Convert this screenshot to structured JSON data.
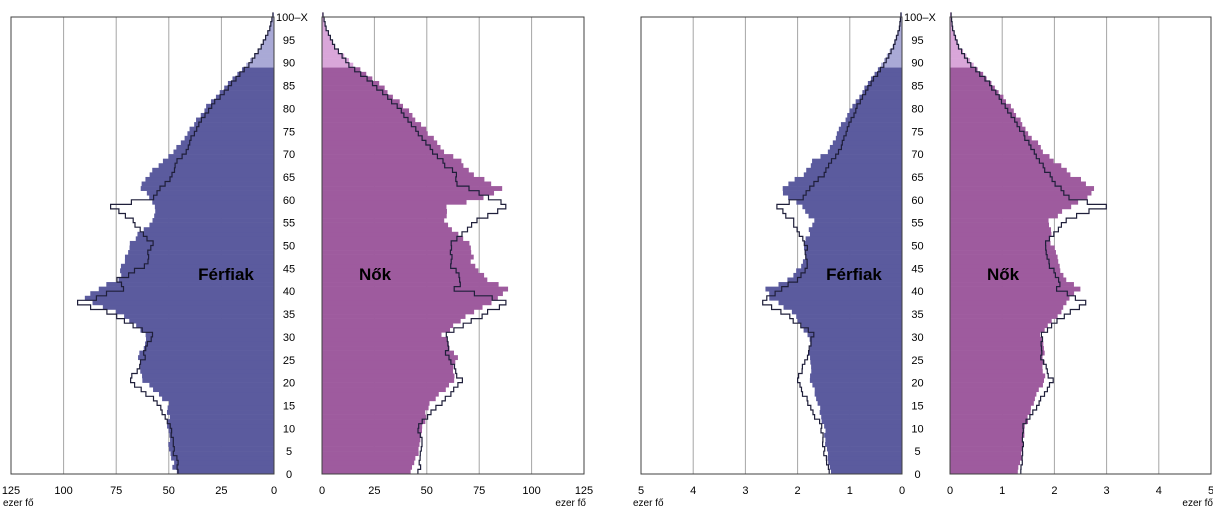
{
  "colors": {
    "male": "#5b5b9e",
    "female": "#9e5b9e",
    "male_light": "#a9a9d6",
    "female_light": "#d9a6d9",
    "outline": "#1f1f3a",
    "grid": "#a6a6a6",
    "frame": "#404040"
  },
  "chart_data": [
    {
      "type": "bar",
      "subtype": "population-pyramid",
      "unit": "ezer fő",
      "age_axis_labels": [
        "0",
        "5",
        "10",
        "15",
        "20",
        "25",
        "30",
        "35",
        "40",
        "45",
        "50",
        "55",
        "60",
        "65",
        "70",
        "75",
        "80",
        "85",
        "90",
        "95",
        "100–X"
      ],
      "age_range": [
        0,
        100
      ],
      "male_label": "Férfiak",
      "female_label": "Nők",
      "xlim": [
        0,
        125
      ],
      "x_ticks": [
        0,
        25,
        50,
        75,
        100,
        125
      ],
      "grid": true,
      "series": [
        {
          "name": "Férfiak",
          "side": "left",
          "style": "filled",
          "light_from_age": 89,
          "points": [
            [
              0,
              47
            ],
            [
              5,
              50
            ],
            [
              10,
              50
            ],
            [
              15,
              50
            ],
            [
              20,
              62
            ],
            [
              25,
              65
            ],
            [
              30,
              60
            ],
            [
              35,
              75
            ],
            [
              38,
              90
            ],
            [
              40,
              83
            ],
            [
              42,
              74
            ],
            [
              45,
              72
            ],
            [
              50,
              69
            ],
            [
              55,
              57
            ],
            [
              58,
              57
            ],
            [
              60,
              60
            ],
            [
              63,
              64
            ],
            [
              65,
              60
            ],
            [
              68,
              53
            ],
            [
              70,
              48
            ],
            [
              75,
              40
            ],
            [
              80,
              32
            ],
            [
              85,
              22
            ],
            [
              89,
              13
            ],
            [
              93,
              6
            ],
            [
              97,
              2
            ],
            [
              100,
              0.5
            ]
          ]
        },
        {
          "name": "",
          "side": "left",
          "style": "outline",
          "points": [
            [
              0,
              45
            ],
            [
              5,
              48
            ],
            [
              10,
              49
            ],
            [
              15,
              55
            ],
            [
              20,
              68
            ],
            [
              25,
              62
            ],
            [
              30,
              58
            ],
            [
              35,
              80
            ],
            [
              37,
              92
            ],
            [
              40,
              72
            ],
            [
              42,
              74
            ],
            [
              45,
              61
            ],
            [
              50,
              58
            ],
            [
              55,
              67
            ],
            [
              58,
              78
            ],
            [
              60,
              57
            ],
            [
              63,
              52
            ],
            [
              65,
              48
            ],
            [
              68,
              46
            ],
            [
              70,
              42
            ],
            [
              75,
              37
            ],
            [
              80,
              30
            ],
            [
              85,
              20
            ],
            [
              89,
              12
            ],
            [
              93,
              6
            ],
            [
              97,
              2
            ],
            [
              100,
              0.5
            ]
          ]
        },
        {
          "name": "Nők",
          "side": "right",
          "style": "filled",
          "light_from_age": 89,
          "points": [
            [
              0,
              43
            ],
            [
              5,
              46
            ],
            [
              10,
              48
            ],
            [
              15,
              51
            ],
            [
              20,
              63
            ],
            [
              25,
              64
            ],
            [
              30,
              58
            ],
            [
              35,
              72
            ],
            [
              38,
              84
            ],
            [
              40,
              89
            ],
            [
              42,
              80
            ],
            [
              45,
              72
            ],
            [
              50,
              70
            ],
            [
              55,
              58
            ],
            [
              58,
              60
            ],
            [
              60,
              76
            ],
            [
              62,
              86
            ],
            [
              65,
              72
            ],
            [
              68,
              66
            ],
            [
              70,
              58
            ],
            [
              75,
              49
            ],
            [
              80,
              39
            ],
            [
              85,
              27
            ],
            [
              89,
              15
            ],
            [
              93,
              6
            ],
            [
              97,
              2
            ],
            [
              100,
              0.5
            ]
          ]
        },
        {
          "name": "",
          "side": "right",
          "style": "outline",
          "points": [
            [
              0,
              46
            ],
            [
              5,
              48
            ],
            [
              10,
              46
            ],
            [
              15,
              57
            ],
            [
              20,
              66
            ],
            [
              25,
              60
            ],
            [
              30,
              59
            ],
            [
              35,
              80
            ],
            [
              37,
              89
            ],
            [
              40,
              64
            ],
            [
              42,
              66
            ],
            [
              45,
              62
            ],
            [
              50,
              61
            ],
            [
              55,
              74
            ],
            [
              58,
              89
            ],
            [
              60,
              80
            ],
            [
              63,
              64
            ],
            [
              65,
              64
            ],
            [
              68,
              57
            ],
            [
              70,
              53
            ],
            [
              75,
              45
            ],
            [
              80,
              36
            ],
            [
              85,
              24
            ],
            [
              89,
              13
            ],
            [
              93,
              6
            ],
            [
              97,
              2
            ],
            [
              100,
              0.5
            ]
          ]
        }
      ]
    },
    {
      "type": "bar",
      "subtype": "population-pyramid",
      "unit": "ezer fő",
      "age_axis_labels": [
        "0",
        "5",
        "10",
        "15",
        "20",
        "25",
        "30",
        "35",
        "40",
        "45",
        "50",
        "55",
        "60",
        "65",
        "70",
        "75",
        "80",
        "85",
        "90",
        "95",
        "100–X"
      ],
      "age_range": [
        0,
        100
      ],
      "male_label": "Férfiak",
      "female_label": "Nők",
      "xlim": [
        0,
        5
      ],
      "x_ticks": [
        0,
        1,
        2,
        3,
        4,
        5
      ],
      "grid": true,
      "series": [
        {
          "name": "Férfiak",
          "side": "left",
          "style": "filled",
          "light_from_age": 89,
          "points": [
            [
              0,
              1.35
            ],
            [
              5,
              1.45
            ],
            [
              10,
              1.5
            ],
            [
              15,
              1.6
            ],
            [
              20,
              1.75
            ],
            [
              25,
              1.75
            ],
            [
              30,
              1.8
            ],
            [
              35,
              2.1
            ],
            [
              38,
              2.5
            ],
            [
              40,
              2.6
            ],
            [
              42,
              2.2
            ],
            [
              45,
              1.9
            ],
            [
              50,
              1.85
            ],
            [
              55,
              1.7
            ],
            [
              58,
              1.9
            ],
            [
              60,
              2.2
            ],
            [
              62,
              2.3
            ],
            [
              65,
              1.9
            ],
            [
              68,
              1.7
            ],
            [
              70,
              1.4
            ],
            [
              75,
              1.2
            ],
            [
              80,
              0.95
            ],
            [
              85,
              0.65
            ],
            [
              89,
              0.4
            ],
            [
              93,
              0.18
            ],
            [
              97,
              0.06
            ],
            [
              100,
              0.02
            ]
          ]
        },
        {
          "name": "",
          "side": "left",
          "style": "outline",
          "points": [
            [
              0,
              1.4
            ],
            [
              5,
              1.5
            ],
            [
              10,
              1.55
            ],
            [
              15,
              1.8
            ],
            [
              20,
              2.0
            ],
            [
              25,
              1.8
            ],
            [
              30,
              1.7
            ],
            [
              35,
              2.3
            ],
            [
              37,
              2.7
            ],
            [
              40,
              2.3
            ],
            [
              42,
              2.0
            ],
            [
              45,
              1.8
            ],
            [
              50,
              1.85
            ],
            [
              55,
              2.1
            ],
            [
              58,
              2.4
            ],
            [
              60,
              1.9
            ],
            [
              63,
              1.7
            ],
            [
              65,
              1.5
            ],
            [
              68,
              1.35
            ],
            [
              70,
              1.2
            ],
            [
              75,
              1.05
            ],
            [
              80,
              0.85
            ],
            [
              85,
              0.6
            ],
            [
              89,
              0.35
            ],
            [
              93,
              0.16
            ],
            [
              97,
              0.05
            ],
            [
              100,
              0.02
            ]
          ]
        },
        {
          "name": "Nők",
          "side": "right",
          "style": "filled",
          "light_from_age": 89,
          "points": [
            [
              0,
              1.3
            ],
            [
              5,
              1.4
            ],
            [
              10,
              1.45
            ],
            [
              15,
              1.6
            ],
            [
              20,
              1.8
            ],
            [
              25,
              1.8
            ],
            [
              30,
              1.75
            ],
            [
              35,
              2.1
            ],
            [
              38,
              2.3
            ],
            [
              40,
              2.5
            ],
            [
              42,
              2.2
            ],
            [
              45,
              2.1
            ],
            [
              50,
              1.95
            ],
            [
              55,
              1.9
            ],
            [
              58,
              2.3
            ],
            [
              60,
              2.6
            ],
            [
              62,
              2.8
            ],
            [
              65,
              2.3
            ],
            [
              68,
              2.0
            ],
            [
              70,
              1.8
            ],
            [
              75,
              1.45
            ],
            [
              80,
              1.15
            ],
            [
              85,
              0.8
            ],
            [
              89,
              0.45
            ],
            [
              93,
              0.18
            ],
            [
              97,
              0.06
            ],
            [
              100,
              0.02
            ]
          ]
        },
        {
          "name": "",
          "side": "right",
          "style": "outline",
          "points": [
            [
              0,
              1.35
            ],
            [
              5,
              1.4
            ],
            [
              10,
              1.4
            ],
            [
              15,
              1.7
            ],
            [
              20,
              1.95
            ],
            [
              25,
              1.75
            ],
            [
              30,
              1.75
            ],
            [
              35,
              2.3
            ],
            [
              37,
              2.6
            ],
            [
              40,
              2.05
            ],
            [
              42,
              2.1
            ],
            [
              45,
              1.9
            ],
            [
              50,
              1.85
            ],
            [
              55,
              2.2
            ],
            [
              58,
              2.95
            ],
            [
              60,
              2.3
            ],
            [
              63,
              2.0
            ],
            [
              65,
              1.9
            ],
            [
              68,
              1.7
            ],
            [
              70,
              1.6
            ],
            [
              75,
              1.35
            ],
            [
              80,
              1.05
            ],
            [
              85,
              0.75
            ],
            [
              89,
              0.4
            ],
            [
              93,
              0.16
            ],
            [
              97,
              0.05
            ],
            [
              100,
              0.02
            ]
          ]
        }
      ]
    }
  ]
}
